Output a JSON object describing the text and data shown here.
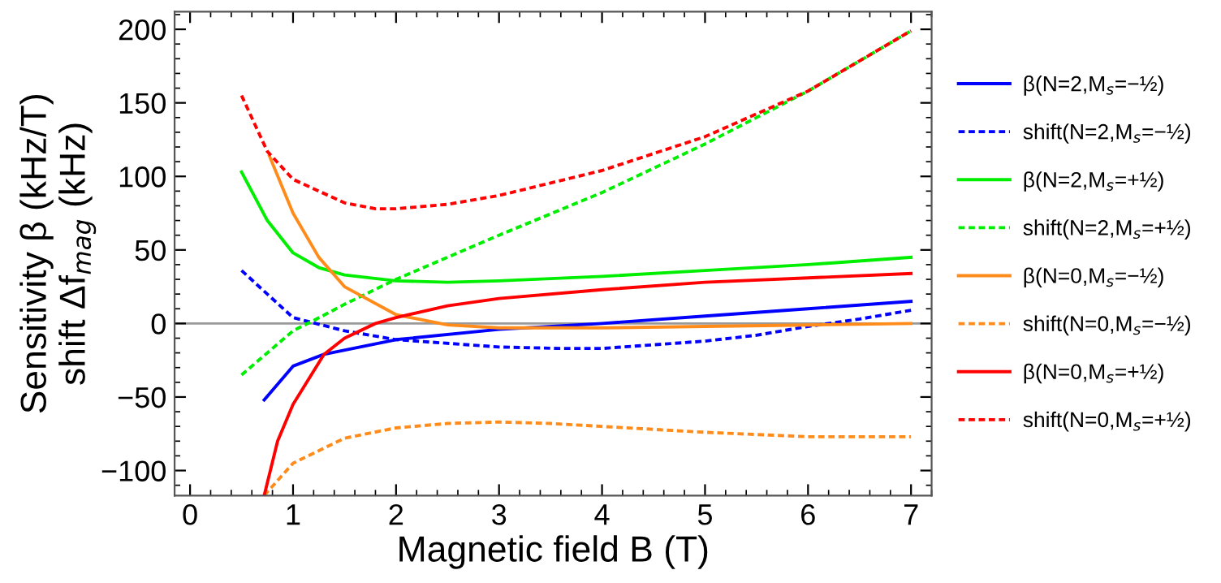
{
  "chart_data": {
    "type": "line",
    "xlabel": "Magnetic field B (T)",
    "ylabel": "Sensitivity β (kHz/T)\nshift Δf$_{mag}$ (kHz)",
    "xlim": [
      -0.15,
      7.2
    ],
    "ylim": [
      -117,
      212
    ],
    "xticks": [
      0,
      1,
      2,
      3,
      4,
      5,
      6,
      7
    ],
    "yticks": [
      -100,
      -50,
      0,
      50,
      100,
      150,
      200
    ],
    "grid": false,
    "legend": "right",
    "marker": "none",
    "ref_lines": [
      {
        "axis": "y",
        "value": 0,
        "color": "#999999",
        "line_style": "solid"
      }
    ],
    "series": [
      {
        "name": "β(N=2,M$_{s}$=−½)",
        "color": "#0000ff",
        "line_style": "solid",
        "x": [
          0.72,
          1,
          1.3,
          2,
          3,
          4,
          5,
          6,
          7
        ],
        "values": [
          -52,
          -29,
          -21,
          -11,
          -4,
          0,
          5,
          10,
          15
        ]
      },
      {
        "name": "shift(N=2,M$_{s}$=−½)",
        "color": "#0000ff",
        "line_style": "dashed",
        "x": [
          0.5,
          1,
          1.5,
          2,
          3,
          3.6,
          4,
          5,
          5.5,
          6,
          6.5,
          7
        ],
        "values": [
          36,
          4,
          -5,
          -11,
          -16,
          -17,
          -17,
          -12,
          -8,
          -2,
          3,
          9
        ]
      },
      {
        "name": "β(N=2,M$_{s}$=+½)",
        "color": "#00ee00",
        "line_style": "solid",
        "x": [
          0.5,
          0.75,
          1,
          1.25,
          1.5,
          2,
          2.5,
          3,
          4,
          5,
          6,
          7
        ],
        "values": [
          103,
          70,
          48,
          38,
          33,
          29,
          28,
          29,
          32,
          36,
          40,
          45
        ]
      },
      {
        "name": "shift(N=2,M$_{s}$=+½)",
        "color": "#00ee00",
        "line_style": "dashed",
        "x": [
          0.5,
          1,
          1.2,
          1.5,
          2,
          2.5,
          3,
          4,
          5,
          6,
          7
        ],
        "values": [
          -35,
          -5,
          2,
          13,
          30,
          45,
          60,
          89,
          122,
          158,
          199
        ]
      },
      {
        "name": "β(N=0,M$_{s}$=−½)",
        "color": "#ff8c1a",
        "line_style": "solid",
        "x": [
          0.77,
          1,
          1.25,
          1.5,
          2,
          2.5,
          3,
          4,
          5,
          6,
          7
        ],
        "values": [
          114,
          75,
          45,
          25,
          6,
          -1,
          -3,
          -3,
          -2,
          -1,
          0
        ]
      },
      {
        "name": "shift(N=0,M$_{s}$=−½)",
        "color": "#ff8c1a",
        "line_style": "dashed",
        "x": [
          0.72,
          1,
          1.5,
          2,
          2.5,
          3,
          3.5,
          4,
          5,
          6,
          7
        ],
        "values": [
          -117,
          -95,
          -78,
          -71,
          -68,
          -67,
          -68,
          -70,
          -74,
          -77,
          -77
        ]
      },
      {
        "name": "β(N=0,M$_{s}$=+½)",
        "color": "#ff0000",
        "line_style": "solid",
        "x": [
          0.72,
          0.85,
          1,
          1.3,
          1.5,
          1.8,
          2,
          2.5,
          3,
          4,
          5,
          6,
          7
        ],
        "values": [
          -117,
          -80,
          -55,
          -21,
          -10,
          0,
          4,
          12,
          17,
          23,
          28,
          31,
          34
        ]
      },
      {
        "name": "shift(N=0,M$_{s}$=+½)",
        "color": "#ff0000",
        "line_style": "dashed",
        "x": [
          0.5,
          0.75,
          1,
          1.5,
          1.8,
          2,
          2.5,
          3,
          4,
          5,
          6,
          7
        ],
        "values": [
          155,
          117,
          98,
          82,
          78,
          78,
          81,
          87,
          104,
          127,
          158,
          199
        ]
      }
    ]
  }
}
